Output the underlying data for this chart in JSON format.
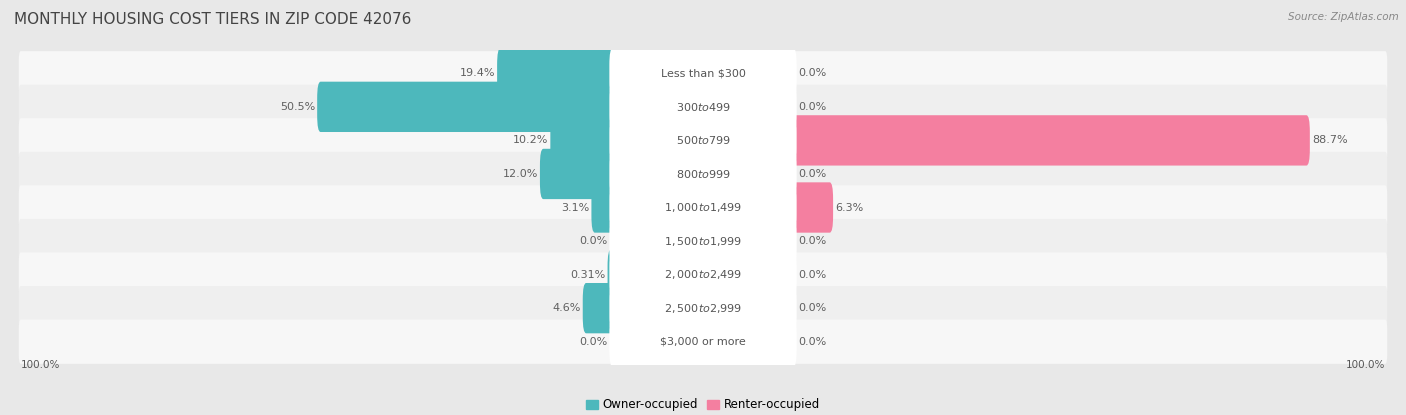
{
  "title": "MONTHLY HOUSING COST TIERS IN ZIP CODE 42076",
  "source": "Source: ZipAtlas.com",
  "categories": [
    "Less than $300",
    "$300 to $499",
    "$500 to $799",
    "$800 to $999",
    "$1,000 to $1,499",
    "$1,500 to $1,999",
    "$2,000 to $2,499",
    "$2,500 to $2,999",
    "$3,000 or more"
  ],
  "owner_values": [
    19.4,
    50.5,
    10.2,
    12.0,
    3.1,
    0.0,
    0.31,
    4.6,
    0.0
  ],
  "renter_values": [
    0.0,
    0.0,
    88.7,
    0.0,
    6.3,
    0.0,
    0.0,
    0.0,
    0.0
  ],
  "owner_color": "#4db8bc",
  "renter_color": "#f47fa0",
  "owner_label": "Owner-occupied",
  "renter_label": "Renter-occupied",
  "background_color": "#e8e8e8",
  "row_bg_even": "#f5f5f5",
  "row_bg_odd": "#ebebeb",
  "max_value": 100.0,
  "title_fontsize": 11,
  "value_fontsize": 8,
  "category_fontsize": 8,
  "legend_fontsize": 8.5
}
